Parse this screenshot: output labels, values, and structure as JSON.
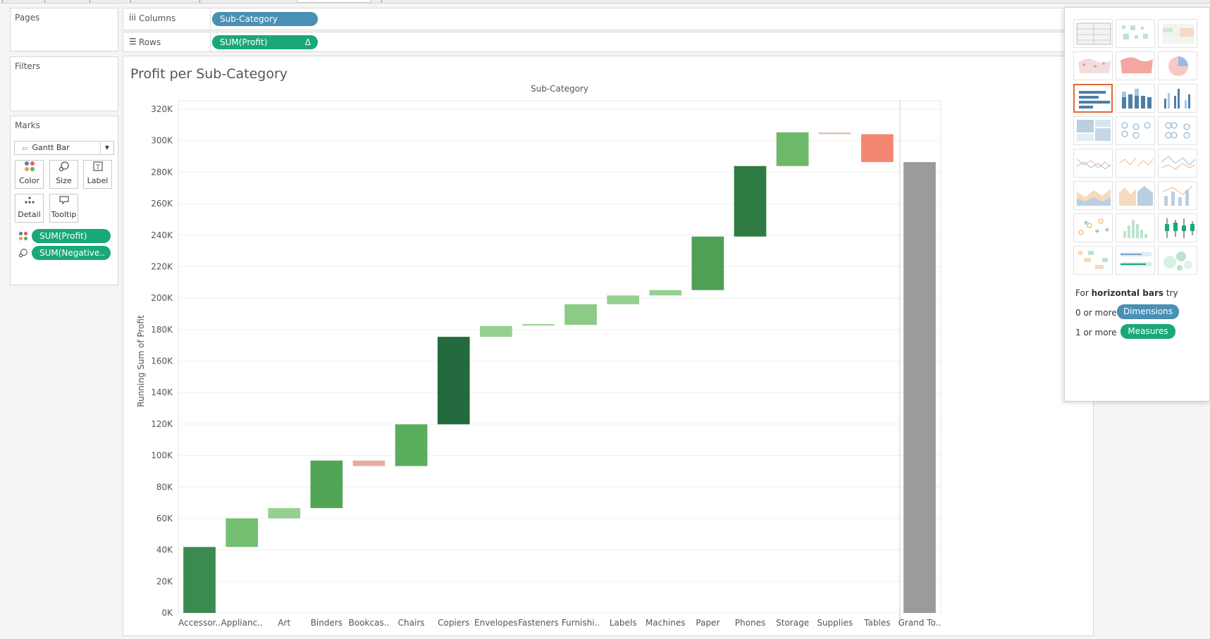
{
  "shelves": {
    "pages_label": "Pages",
    "filters_label": "Filters",
    "columns_label": "Columns",
    "columns_pill": "Sub-Category",
    "rows_label": "Rows",
    "rows_pill": "SUM(Profit)",
    "rows_pill_delta": "Δ"
  },
  "marks": {
    "title": "Marks",
    "mark_type": "Gantt Bar",
    "buttons": {
      "color": "Color",
      "size": "Size",
      "label": "Label",
      "detail": "Detail",
      "tooltip": "Tooltip"
    },
    "pills": [
      "SUM(Profit)",
      "SUM(Negative.."
    ]
  },
  "view": {
    "title": "Profit per Sub-Category"
  },
  "show_me": {
    "hint_prefix": "For",
    "hint_bold": "horizontal bars",
    "hint_suffix": "try",
    "dim_count": "0 or more",
    "dim_label": "Dimensions",
    "meas_count": "1 or more",
    "meas_label": "Measures"
  },
  "colors": {
    "dimension_pill": "#4a8fb4",
    "measure_pill": "#1aa77a",
    "active_thumb_border": "#e06a35",
    "grand_total_bar": "#9b9b9b"
  },
  "chart_data": {
    "type": "bar",
    "subtype": "waterfall (gantt bars of running sum)",
    "top_label": "Sub-Category",
    "ylabel": "Running Sum of Profit",
    "ylim": [
      0,
      320000
    ],
    "y_ticks": [
      "0K",
      "20K",
      "40K",
      "60K",
      "80K",
      "100K",
      "120K",
      "140K",
      "160K",
      "180K",
      "200K",
      "220K",
      "240K",
      "260K",
      "280K",
      "300K",
      "320K"
    ],
    "y_tick_values": [
      0,
      20000,
      40000,
      60000,
      80000,
      100000,
      120000,
      140000,
      160000,
      180000,
      200000,
      220000,
      240000,
      260000,
      280000,
      300000,
      320000
    ],
    "categories": [
      "Accessor..",
      "Applianc..",
      "Art",
      "Binders",
      "Bookcas..",
      "Chairs",
      "Copiers",
      "Envelopes",
      "Fasteners",
      "Furnishi..",
      "Labels",
      "Machines",
      "Paper",
      "Phones",
      "Storage",
      "Supplies",
      "Tables",
      "Grand To.."
    ],
    "bars": [
      {
        "start": 0,
        "end": 41900,
        "color": "#3b8a4f"
      },
      {
        "start": 41900,
        "end": 60100,
        "color": "#73c073"
      },
      {
        "start": 60100,
        "end": 66600,
        "color": "#96d08f"
      },
      {
        "start": 66600,
        "end": 96800,
        "color": "#52a456"
      },
      {
        "start": 96800,
        "end": 93300,
        "color": "#e5ad9f"
      },
      {
        "start": 93300,
        "end": 119800,
        "color": "#5aad5d"
      },
      {
        "start": 119800,
        "end": 175400,
        "color": "#236b3e"
      },
      {
        "start": 175400,
        "end": 182300,
        "color": "#96d08f"
      },
      {
        "start": 182300,
        "end": 183000,
        "color": "#96d08f"
      },
      {
        "start": 183000,
        "end": 196100,
        "color": "#8ccb86"
      },
      {
        "start": 196100,
        "end": 201700,
        "color": "#96d08f"
      },
      {
        "start": 201700,
        "end": 205100,
        "color": "#96d08f"
      },
      {
        "start": 205100,
        "end": 239100,
        "color": "#4f9f55"
      },
      {
        "start": 239100,
        "end": 283900,
        "color": "#2e7c43"
      },
      {
        "start": 283900,
        "end": 305300,
        "color": "#6db869"
      },
      {
        "start": 305300,
        "end": 304100,
        "color": "#dcc4bb"
      },
      {
        "start": 304100,
        "end": 286400,
        "color": "#f38771"
      },
      {
        "start": 0,
        "end": 286400,
        "color": "#9b9b9b"
      }
    ]
  }
}
